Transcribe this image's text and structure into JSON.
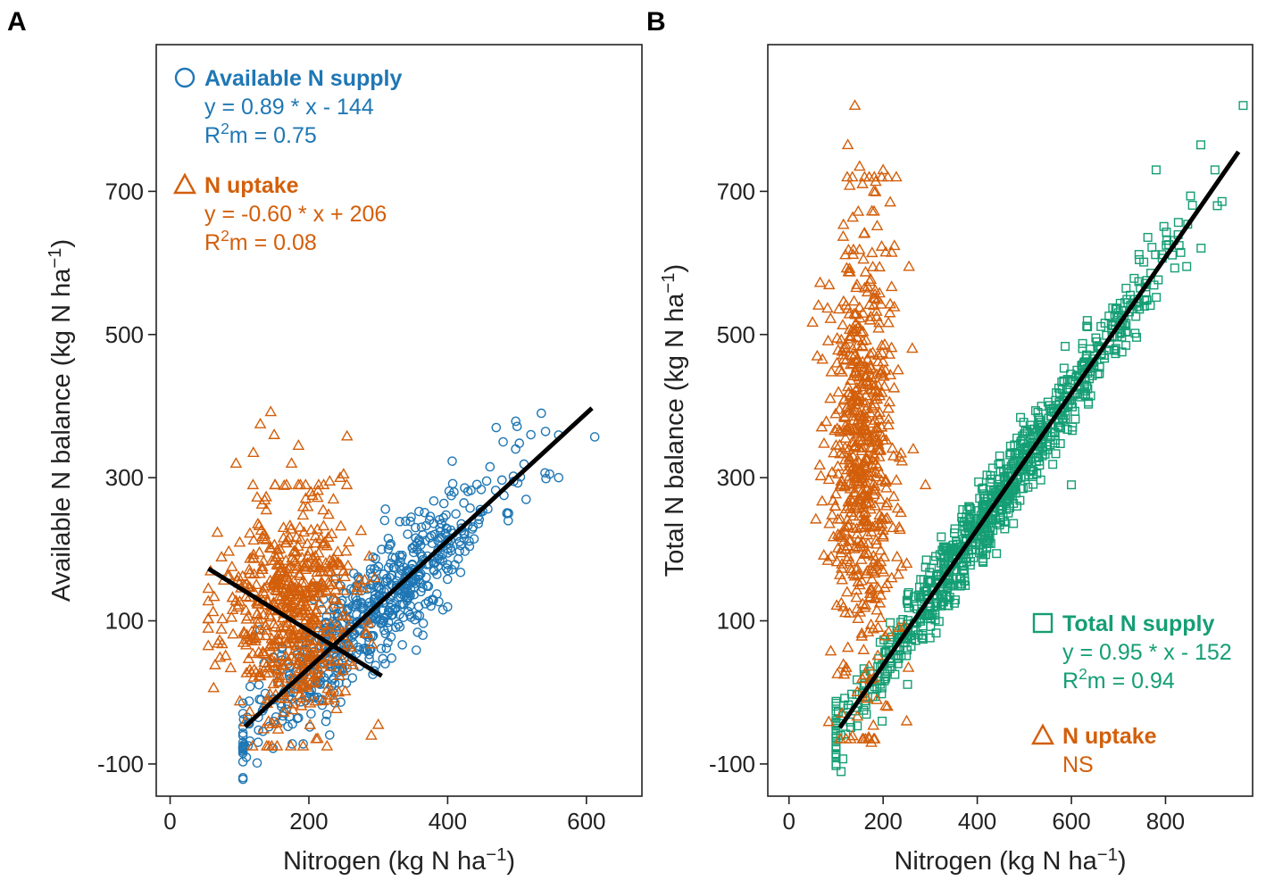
{
  "chart_data": [
    {
      "panel_label": "A",
      "type": "scatter",
      "xlabel": "Nitrogen (kg N ha",
      "xlabel_sup": "−1",
      "xlabel_end": ")",
      "ylabel": "Available N balance (kg N ha",
      "ylabel_sup": "−1",
      "ylabel_end": ")",
      "xlim": [
        -20,
        680
      ],
      "ylim": [
        -145,
        905
      ],
      "xticks": [
        0,
        200,
        400,
        600
      ],
      "yticks": [
        -100,
        100,
        300,
        500,
        700
      ],
      "grid": false,
      "series": [
        {
          "name": "Available N supply",
          "marker": "circle",
          "color": "#1f77b4",
          "equation": "y = 0.89 * x - 144",
          "r2_prefix": "R",
          "r2_sup": "2",
          "r2_suffix": "m = 0.75",
          "fit": {
            "slope": 0.89,
            "intercept": -144,
            "x_range": [
              108,
              608
            ]
          },
          "cloud": {
            "n": 650,
            "x_center": 290,
            "x_spread": 90,
            "x_min": 105,
            "x_max": 560,
            "resid_sd": 40,
            "seed": 11
          },
          "points": [
            {
              "x": 612,
              "y": 357
            },
            {
              "x": 535,
              "y": 390
            },
            {
              "x": 547,
              "y": 305
            },
            {
              "x": 480,
              "y": 350
            },
            {
              "x": 470,
              "y": 370
            },
            {
              "x": 498,
              "y": 340
            },
            {
              "x": 520,
              "y": 360
            },
            {
              "x": 108,
              "y": -75
            },
            {
              "x": 115,
              "y": -68
            },
            {
              "x": 560,
              "y": 300
            }
          ]
        },
        {
          "name": "N uptake",
          "marker": "triangle",
          "color": "#d35f0b",
          "equation": "y = -0.60 * x + 206",
          "r2_prefix": "R",
          "r2_sup": "2",
          "r2_suffix": "m = 0.08",
          "fit": {
            "slope": -0.6,
            "intercept": 206,
            "x_range": [
              55,
              305
            ]
          },
          "cloud": {
            "n": 600,
            "x_center": 170,
            "x_spread": 48,
            "x_min": 55,
            "x_max": 310,
            "y_center": 110,
            "y_sd": 78,
            "y_min": -75,
            "y_max": 290,
            "seed": 23
          },
          "points": [
            {
              "x": 145,
              "y": 392
            },
            {
              "x": 130,
              "y": 375
            },
            {
              "x": 150,
              "y": 360
            },
            {
              "x": 255,
              "y": 358
            },
            {
              "x": 120,
              "y": 335
            },
            {
              "x": 175,
              "y": 320
            },
            {
              "x": 185,
              "y": 345
            },
            {
              "x": 95,
              "y": 320
            },
            {
              "x": 245,
              "y": 300
            },
            {
              "x": 250,
              "y": 305
            },
            {
              "x": 230,
              "y": 295
            },
            {
              "x": 300,
              "y": -45
            },
            {
              "x": 290,
              "y": -60
            }
          ]
        }
      ]
    },
    {
      "panel_label": "B",
      "type": "scatter",
      "xlabel": "Nitrogen (kg N ha",
      "xlabel_sup": "−1",
      "xlabel_end": ")",
      "ylabel": "Total N balance (kg N ha",
      "ylabel_sup": "−1",
      "ylabel_end": ")",
      "xlim": [
        -45,
        985
      ],
      "ylim": [
        -145,
        905
      ],
      "xticks": [
        0,
        200,
        400,
        600,
        800
      ],
      "yticks": [
        -100,
        100,
        300,
        500,
        700
      ],
      "grid": false,
      "series": [
        {
          "name": "Total N supply",
          "marker": "square",
          "color": "#159e74",
          "equation": "y = 0.95 * x - 152",
          "r2_prefix": "R",
          "r2_sup": "2",
          "r2_suffix": "m = 0.94",
          "fit": {
            "slope": 0.95,
            "intercept": -152,
            "x_range": [
              108,
              955
            ]
          },
          "cloud": {
            "n": 900,
            "x_center": 440,
            "x_spread": 170,
            "x_min": 100,
            "x_max": 920,
            "resid_sd": 26,
            "seed": 37
          },
          "points": [
            {
              "x": 965,
              "y": 820
            },
            {
              "x": 875,
              "y": 765
            },
            {
              "x": 905,
              "y": 730
            },
            {
              "x": 910,
              "y": 680
            },
            {
              "x": 845,
              "y": 595
            },
            {
              "x": 600,
              "y": 290
            },
            {
              "x": 100,
              "y": -75
            },
            {
              "x": 110,
              "y": -60
            },
            {
              "x": 780,
              "y": 730
            }
          ]
        },
        {
          "name": "N uptake",
          "marker": "triangle",
          "color": "#d35f0b",
          "equation": "NS",
          "r2_prefix": "",
          "r2_sup": "",
          "r2_suffix": "",
          "fit": null,
          "cloud": {
            "n": 650,
            "x_center": 158,
            "x_spread": 38,
            "x_min": 50,
            "x_max": 265,
            "y_center": 330,
            "y_sd": 170,
            "y_min": -65,
            "y_max": 720,
            "seed": 53
          },
          "points": [
            {
              "x": 140,
              "y": 820
            },
            {
              "x": 125,
              "y": 765
            },
            {
              "x": 150,
              "y": 735
            },
            {
              "x": 200,
              "y": 730
            },
            {
              "x": 180,
              "y": 700
            },
            {
              "x": 215,
              "y": 685
            },
            {
              "x": 255,
              "y": 595
            },
            {
              "x": 60,
              "y": 470
            },
            {
              "x": 290,
              "y": 290
            },
            {
              "x": 250,
              "y": -40
            },
            {
              "x": 175,
              "y": -70
            }
          ]
        }
      ]
    }
  ]
}
